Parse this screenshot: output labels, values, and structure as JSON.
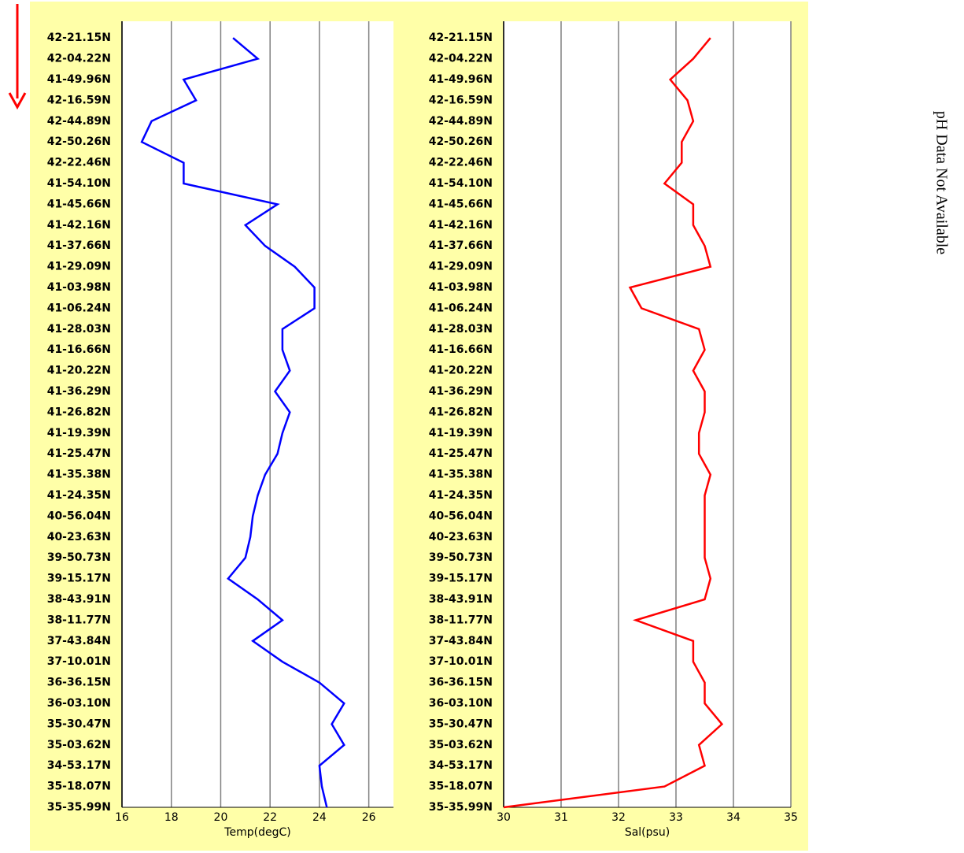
{
  "chart_data": [
    {
      "type": "line",
      "x_label": "Temp(degC)",
      "color": "#0000ff",
      "categories": [
        "42-21.15N",
        "42-04.22N",
        "41-49.96N",
        "42-16.59N",
        "42-44.89N",
        "42-50.26N",
        "42-22.46N",
        "41-54.10N",
        "41-45.66N",
        "41-42.16N",
        "41-37.66N",
        "41-29.09N",
        "41-03.98N",
        "41-06.24N",
        "41-28.03N",
        "41-16.66N",
        "41-20.22N",
        "41-36.29N",
        "41-26.82N",
        "41-19.39N",
        "41-25.47N",
        "41-35.38N",
        "41-24.35N",
        "40-56.04N",
        "40-23.63N",
        "39-50.73N",
        "39-15.17N",
        "38-43.91N",
        "38-11.77N",
        "37-43.84N",
        "37-10.01N",
        "36-36.15N",
        "36-03.10N",
        "35-30.47N",
        "35-03.62N",
        "34-53.17N",
        "35-18.07N",
        "35-35.99N"
      ],
      "values": [
        20.5,
        21.5,
        18.5,
        19,
        17.2,
        16.8,
        18.5,
        18.5,
        22.3,
        21,
        21.8,
        23,
        23.8,
        23.8,
        22.5,
        22.5,
        22.8,
        22.2,
        22.8,
        22.5,
        22.3,
        21.8,
        21.5,
        21.3,
        21.2,
        21,
        20.3,
        21.5,
        22.5,
        21.3,
        22.5,
        24,
        25,
        24.5,
        25,
        24,
        24.1,
        24.3
      ],
      "xlim": [
        16,
        27
      ],
      "xticks": [
        16,
        18,
        20,
        22,
        24,
        26
      ],
      "grid": true
    },
    {
      "type": "line",
      "x_label": "Sal(psu)",
      "color": "#ff0000",
      "categories": [
        "42-21.15N",
        "42-04.22N",
        "41-49.96N",
        "42-16.59N",
        "42-44.89N",
        "42-50.26N",
        "42-22.46N",
        "41-54.10N",
        "41-45.66N",
        "41-42.16N",
        "41-37.66N",
        "41-29.09N",
        "41-03.98N",
        "41-06.24N",
        "41-28.03N",
        "41-16.66N",
        "41-20.22N",
        "41-36.29N",
        "41-26.82N",
        "41-19.39N",
        "41-25.47N",
        "41-35.38N",
        "41-24.35N",
        "40-56.04N",
        "40-23.63N",
        "39-50.73N",
        "39-15.17N",
        "38-43.91N",
        "38-11.77N",
        "37-43.84N",
        "37-10.01N",
        "36-36.15N",
        "36-03.10N",
        "35-30.47N",
        "35-03.62N",
        "34-53.17N",
        "35-18.07N",
        "35-35.99N"
      ],
      "values": [
        33.6,
        33.3,
        32.9,
        33.2,
        33.3,
        33.1,
        33.1,
        32.8,
        33.3,
        33.3,
        33.5,
        33.6,
        32.2,
        32.4,
        33.4,
        33.5,
        33.3,
        33.5,
        33.5,
        33.4,
        33.4,
        33.6,
        33.5,
        33.5,
        33.5,
        33.5,
        33.6,
        33.5,
        32.3,
        33.3,
        33.3,
        33.5,
        33.5,
        33.8,
        33.4,
        33.5,
        32.8,
        30
      ],
      "xlim": [
        30,
        35
      ],
      "xticks": [
        30,
        31,
        32,
        33,
        34,
        35
      ],
      "grid": true
    }
  ],
  "side_note": "pH Data Not Available"
}
